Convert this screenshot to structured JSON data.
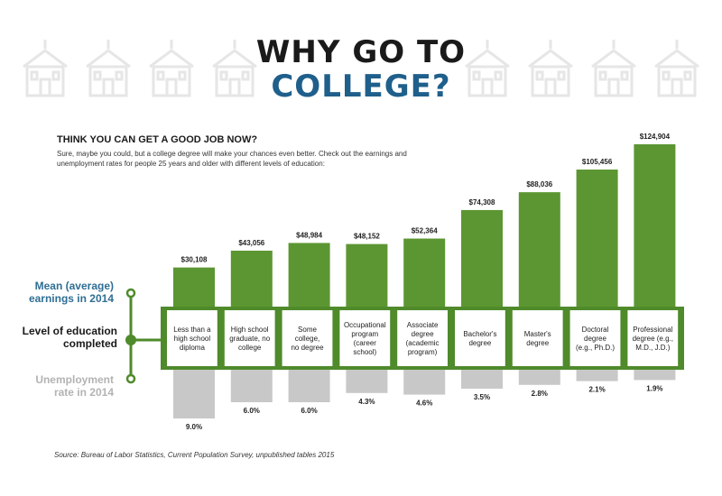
{
  "header": {
    "title_line1": "WHY GO TO",
    "title_line2": "COLLEGE?",
    "subheading": "THINK YOU CAN GET A GOOD JOB NOW?",
    "intro": "Sure, maybe you could, but a college degree will make your chances even better. Check out the earnings and unemployment rates for people 25 years and older with different levels of education:"
  },
  "labels": {
    "earnings": "Mean (average) earnings in 2014",
    "level": "Level of education completed",
    "unemployment": "Unemployment rate in 2014"
  },
  "source": "Source: Bureau of Labor Statistics, Current Population Survey, unpublished tables 2015",
  "colors": {
    "earnings_bar": "#5c9632",
    "unemployment_bar": "#c8c8c8",
    "band_border": "#4f8a2b",
    "title_accent": "#1f5f8b",
    "background_buildings": "#e6e6e6"
  },
  "icons": [
    "school-building-icon"
  ],
  "chart_data": {
    "type": "bar",
    "categories": [
      "Less than a high school diploma",
      "High school graduate, no college",
      "Some college, no degree",
      "Occupational program (career school)",
      "Associate degree (academic program)",
      "Bachelor's degree",
      "Master's degree",
      "Doctoral degree (e.g., Ph.D.)",
      "Professional degree (e.g., M.D., J.D.)"
    ],
    "category_lines": [
      [
        "Less than a",
        "high school",
        "diploma"
      ],
      [
        "High school",
        "graduate, no",
        "college"
      ],
      [
        "Some",
        "college,",
        "no degree"
      ],
      [
        "Occupational",
        "program",
        "(career",
        "school)"
      ],
      [
        "Associate",
        "degree",
        "(academic",
        "program)"
      ],
      [
        "Bachelor's",
        "degree"
      ],
      [
        "Master's",
        "degree"
      ],
      [
        "Doctoral",
        "degree",
        "(e.g., Ph.D.)"
      ],
      [
        "Professional",
        "degree (e.g.,",
        "M.D., J.D.)"
      ]
    ],
    "series": [
      {
        "name": "Mean (average) earnings in 2014",
        "values": [
          30108,
          43056,
          48984,
          48152,
          52364,
          74308,
          88036,
          105456,
          124904
        ],
        "labels": [
          "$30,108",
          "$43,056",
          "$48,984",
          "$48,152",
          "$52,364",
          "$74,308",
          "$88,036",
          "$105,456",
          "$124,904"
        ]
      },
      {
        "name": "Unemployment rate in 2014",
        "values": [
          9.0,
          6.0,
          6.0,
          4.3,
          4.6,
          3.5,
          2.8,
          2.1,
          1.9
        ],
        "labels": [
          "9.0%",
          "6.0%",
          "6.0%",
          "4.3%",
          "4.6%",
          "3.5%",
          "2.8%",
          "2.1%",
          "1.9%"
        ]
      }
    ],
    "ylim_earnings": [
      0,
      124904
    ],
    "ylim_unemployment": [
      0,
      9.0
    ],
    "grid": false
  }
}
